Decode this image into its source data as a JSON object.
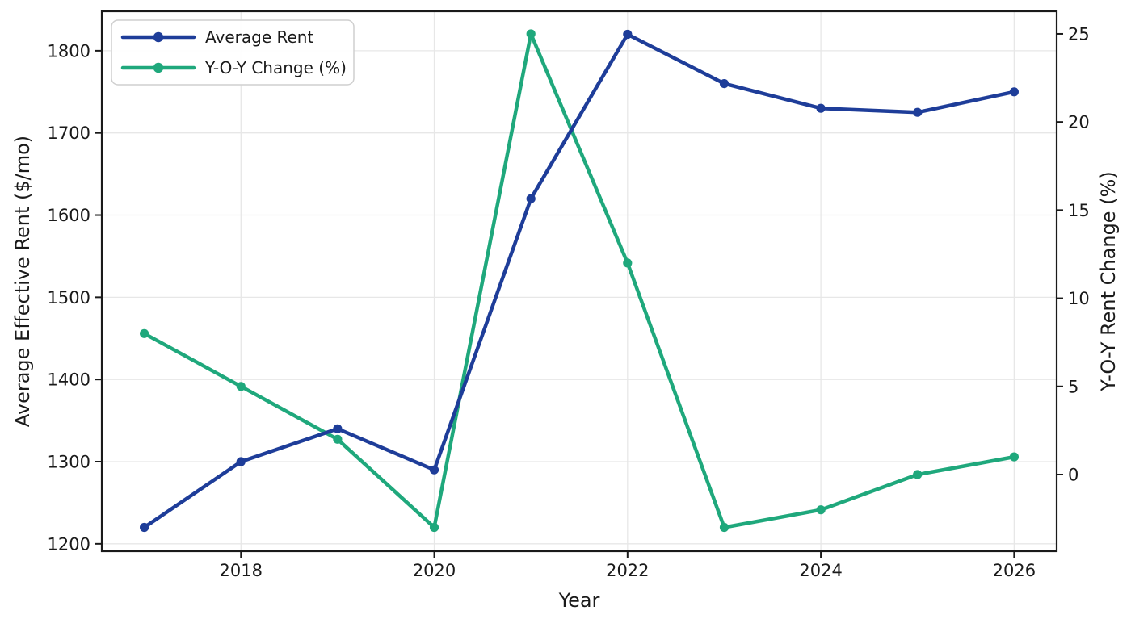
{
  "chart_data": {
    "type": "line",
    "title": "",
    "xlabel": "Year",
    "ylabel_left": "Average Effective Rent ($/mo)",
    "ylabel_right": "Y-O-Y Rent Change (%)",
    "x": [
      2017,
      2018,
      2019,
      2020,
      2021,
      2022,
      2023,
      2024,
      2025,
      2026
    ],
    "series": [
      {
        "name": "Average Rent",
        "axis": "left",
        "color": "#1e3d99",
        "values": [
          1220,
          1300,
          1340,
          1290,
          1620,
          1820,
          1760,
          1730,
          1725,
          1750
        ]
      },
      {
        "name": "Y-O-Y Change (%)",
        "axis": "right",
        "color": "#1fa87c",
        "values": [
          8,
          5,
          2,
          -3,
          25,
          12,
          -3,
          -2,
          0,
          1
        ]
      }
    ],
    "x_ticks": [
      2018,
      2020,
      2022,
      2024,
      2026
    ],
    "left_ticks": [
      1200,
      1300,
      1400,
      1500,
      1600,
      1700,
      1800
    ],
    "right_ticks": [
      0,
      5,
      10,
      15,
      20,
      25
    ],
    "xlim": [
      2016.56,
      2026.44
    ],
    "ylim_left": [
      1191,
      1848
    ],
    "ylim_right": [
      -4.35,
      26.28
    ],
    "grid": true,
    "grid_color": "#e7e7e7",
    "spine_color": "#1a1a1a",
    "background": "#ffffff",
    "legend_position": "upper-left"
  }
}
